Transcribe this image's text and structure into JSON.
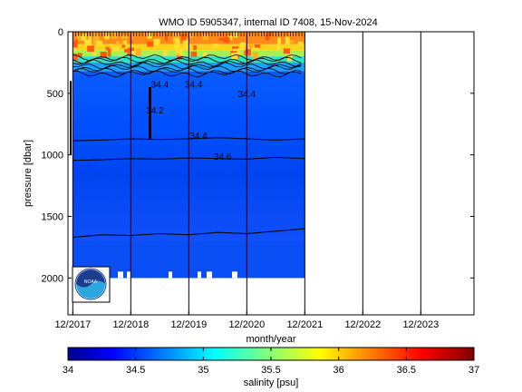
{
  "chart_data": {
    "type": "heatmap",
    "title": "WMO ID 5905347, internal ID 7408, 15-Nov-2024",
    "xlabel": "month/year",
    "ylabel": "pressure [dbar]",
    "x_ticks": [
      "12/2017",
      "12/2018",
      "12/2019",
      "12/2020",
      "12/2021",
      "12/2022",
      "12/2023"
    ],
    "x_range": [
      "2017-11",
      "2024-11"
    ],
    "y_ticks": [
      0,
      500,
      1000,
      1500,
      2000
    ],
    "ylim": [
      2300,
      0
    ],
    "y_reversed": true,
    "data_extent": {
      "x_end": "2021-12",
      "max_pressure": 2000
    },
    "colorbar": {
      "label": "salinity [psu]",
      "ticks": [
        34,
        34.5,
        35,
        35.5,
        36,
        36.5,
        37
      ],
      "range": [
        34,
        37
      ],
      "colormap": "jet"
    },
    "contour_labels": [
      {
        "text": "34.4",
        "x": "2019-06",
        "y": 455
      },
      {
        "text": "34.4",
        "x": "2020-01",
        "y": 455
      },
      {
        "text": "34.4",
        "x": "2020-12",
        "y": 530
      },
      {
        "text": "34.2",
        "x": "2019-05",
        "y": 665
      },
      {
        "text": "34.4",
        "x": "2020-02",
        "y": 870
      },
      {
        "text": "34.6",
        "x": "2020-07",
        "y": 1040
      }
    ],
    "contours": [
      {
        "level": 34.6,
        "values": [
          1670,
          1650,
          1655,
          1640,
          1650,
          1630,
          1640,
          1620,
          1600
        ]
      },
      {
        "level": 34.6,
        "values": [
          1045,
          1040,
          1030,
          1035,
          1025,
          1030,
          1035,
          1020,
          1030
        ]
      },
      {
        "level": 34.4,
        "values": [
          885,
          880,
          870,
          875,
          870,
          860,
          870,
          880,
          870
        ]
      }
    ],
    "contour_x": [
      "2017-12",
      "2018-06",
      "2018-12",
      "2019-06",
      "2019-12",
      "2020-06",
      "2020-12",
      "2021-06",
      "2021-12"
    ],
    "surface_salinity": {
      "range": [
        35.8,
        36.6
      ],
      "mixed_layer_depth": 250
    }
  },
  "logo": {
    "text": "NOAA"
  }
}
